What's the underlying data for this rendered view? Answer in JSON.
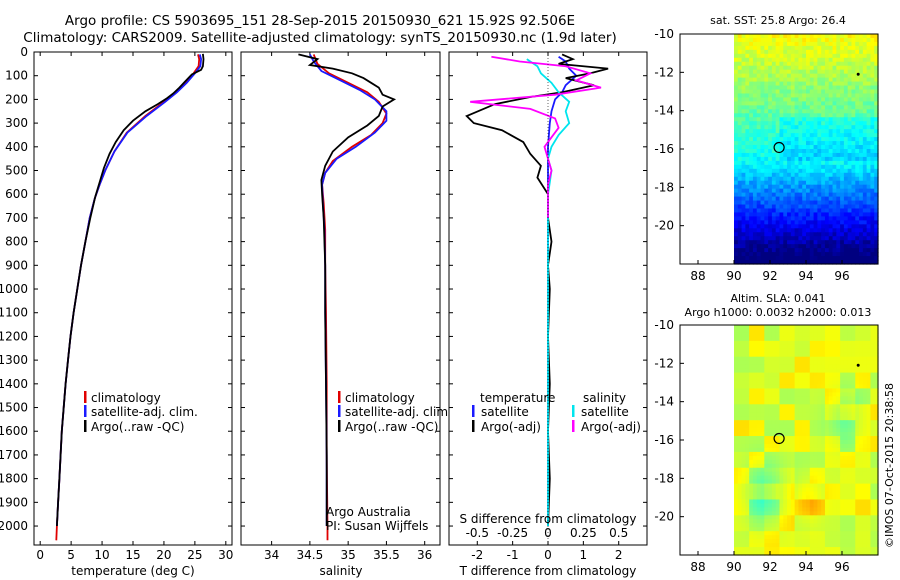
{
  "header": {
    "line1": "Argo profile: CS 5903695_151 28-Sep-2015 20150930_621 15.92S 92.506E",
    "line2": "Climatology: CARS2009. Satellite-adjusted climatology: synTS_20150930.nc (1.9d later)"
  },
  "legend": {
    "climatology": "climatology",
    "satellite_adj": "satellite-adj. clim.",
    "argo": "Argo(..raw -QC)",
    "temperature_hdr": "temperature",
    "salinity_hdr": "salinity",
    "satellite": "satellite",
    "argo_adj": "Argo(-adj)"
  },
  "annotations": {
    "agency": "Argo Australia",
    "pi": "PI: Susan Wijffels",
    "credit": "©IMOS 07-Oct-2015 20:38:58"
  },
  "colors": {
    "climatology": "#e00000",
    "satellite": "#1a1aff",
    "argo": "#000000",
    "sat_salinity": "#00e5ee",
    "argo_salinity": "#ff00ff"
  },
  "chart_data": [
    {
      "id": "temperature",
      "type": "line",
      "xlabel": "temperature (deg C)",
      "ylabel": "",
      "xlim": [
        -1,
        31
      ],
      "ylim": [
        2080,
        0
      ],
      "x_ticks": [
        0,
        5,
        10,
        15,
        20,
        25,
        30
      ],
      "y_ticks": [
        0,
        100,
        200,
        300,
        400,
        500,
        600,
        700,
        800,
        900,
        1000,
        1100,
        1200,
        1300,
        1400,
        1500,
        1600,
        1700,
        1800,
        1900,
        2000
      ],
      "series": [
        {
          "name": "climatology",
          "color": "#e00000",
          "points": [
            [
              25.5,
              10
            ],
            [
              25.7,
              30
            ],
            [
              25.6,
              60
            ],
            [
              24.8,
              90
            ],
            [
              23.5,
              130
            ],
            [
              22,
              170
            ],
            [
              20,
              210
            ],
            [
              17,
              270
            ],
            [
              14,
              340
            ],
            [
              12,
              420
            ],
            [
              10.5,
              500
            ],
            [
              9.6,
              560
            ],
            [
              8.8,
              620
            ],
            [
              8,
              700
            ],
            [
              7.3,
              800
            ],
            [
              6.6,
              900
            ],
            [
              6,
              1000
            ],
            [
              5.4,
              1100
            ],
            [
              4.9,
              1200
            ],
            [
              4.5,
              1300
            ],
            [
              4.1,
              1400
            ],
            [
              3.8,
              1500
            ],
            [
              3.5,
              1600
            ],
            [
              3.3,
              1700
            ],
            [
              3.1,
              1800
            ],
            [
              2.9,
              1900
            ],
            [
              2.7,
              2000
            ],
            [
              2.6,
              2060
            ]
          ]
        },
        {
          "name": "satellite-adj. clim.",
          "color": "#1a1aff",
          "points": [
            [
              25.8,
              10
            ],
            [
              26,
              30
            ],
            [
              25.9,
              60
            ],
            [
              25,
              90
            ],
            [
              23.7,
              130
            ],
            [
              22.1,
              170
            ],
            [
              20.2,
              210
            ],
            [
              17.2,
              270
            ],
            [
              14.1,
              340
            ],
            [
              12,
              420
            ],
            [
              10.5,
              500
            ],
            [
              9.6,
              560
            ],
            [
              8.8,
              620
            ],
            [
              8,
              700
            ],
            [
              7.3,
              800
            ],
            [
              6.6,
              900
            ],
            [
              6,
              1000
            ],
            [
              5.4,
              1100
            ],
            [
              4.9,
              1200
            ],
            [
              4.5,
              1300
            ],
            [
              4.1,
              1400
            ],
            [
              3.8,
              1500
            ],
            [
              3.5,
              1600
            ],
            [
              3.3,
              1700
            ],
            [
              3.1,
              1800
            ],
            [
              2.9,
              1900
            ],
            [
              2.7,
              2000
            ]
          ]
        },
        {
          "name": "Argo(..raw -QC)",
          "color": "#000000",
          "points": [
            [
              26.3,
              8
            ],
            [
              26.4,
              30
            ],
            [
              26.3,
              60
            ],
            [
              26,
              75
            ],
            [
              24.5,
              95
            ],
            [
              23.6,
              120
            ],
            [
              22.5,
              150
            ],
            [
              21.5,
              175
            ],
            [
              20.5,
              195
            ],
            [
              19,
              220
            ],
            [
              17,
              250
            ],
            [
              15,
              290
            ],
            [
              13.5,
              330
            ],
            [
              12.2,
              380
            ],
            [
              11.2,
              430
            ],
            [
              10.3,
              490
            ],
            [
              9.6,
              550
            ],
            [
              8.9,
              610
            ],
            [
              8.1,
              700
            ],
            [
              7.3,
              800
            ],
            [
              6.6,
              900
            ],
            [
              6,
              1000
            ],
            [
              5.4,
              1100
            ],
            [
              4.9,
              1200
            ],
            [
              4.5,
              1300
            ],
            [
              4.1,
              1400
            ],
            [
              3.8,
              1500
            ],
            [
              3.5,
              1600
            ],
            [
              3.3,
              1700
            ],
            [
              3.1,
              1800
            ],
            [
              2.9,
              1900
            ],
            [
              2.7,
              2000
            ]
          ]
        }
      ]
    },
    {
      "id": "salinity",
      "type": "line",
      "xlabel": "salinity",
      "ylabel": "",
      "xlim": [
        33.6,
        36.2
      ],
      "ylim": [
        2080,
        0
      ],
      "x_ticks": [
        34,
        34.5,
        35,
        35.5,
        36
      ],
      "series": [
        {
          "name": "climatology",
          "color": "#e00000",
          "points": [
            [
              34.55,
              10
            ],
            [
              34.6,
              50
            ],
            [
              34.75,
              90
            ],
            [
              35,
              130
            ],
            [
              35.25,
              170
            ],
            [
              35.4,
              210
            ],
            [
              35.5,
              260
            ],
            [
              35.45,
              300
            ],
            [
              35.3,
              350
            ],
            [
              35.05,
              400
            ],
            [
              34.8,
              460
            ],
            [
              34.7,
              510
            ],
            [
              34.66,
              560
            ],
            [
              34.68,
              640
            ],
            [
              34.7,
              750
            ],
            [
              34.7,
              900
            ],
            [
              34.71,
              1100
            ],
            [
              34.72,
              1400
            ],
            [
              34.72,
              1700
            ],
            [
              34.73,
              2000
            ],
            [
              34.73,
              2060
            ]
          ]
        },
        {
          "name": "satellite-adj. clim.",
          "color": "#1a1aff",
          "points": [
            [
              34.5,
              10
            ],
            [
              34.55,
              40
            ],
            [
              34.65,
              80
            ],
            [
              34.9,
              120
            ],
            [
              35.15,
              160
            ],
            [
              35.35,
              200
            ],
            [
              35.5,
              250
            ],
            [
              35.5,
              290
            ],
            [
              35.35,
              340
            ],
            [
              35.1,
              400
            ],
            [
              34.85,
              450
            ],
            [
              34.7,
              510
            ],
            [
              34.66,
              560
            ],
            [
              34.67,
              640
            ],
            [
              34.69,
              750
            ],
            [
              34.7,
              900
            ],
            [
              34.7,
              1100
            ],
            [
              34.71,
              1400
            ],
            [
              34.72,
              1700
            ],
            [
              34.72,
              2000
            ]
          ]
        },
        {
          "name": "Argo(..raw -QC)",
          "color": "#000000",
          "points": [
            [
              34.35,
              10
            ],
            [
              34.6,
              30
            ],
            [
              34.5,
              55
            ],
            [
              34.8,
              70
            ],
            [
              35.05,
              90
            ],
            [
              35.2,
              110
            ],
            [
              35.3,
              130
            ],
            [
              35.4,
              150
            ],
            [
              35.45,
              180
            ],
            [
              35.6,
              200
            ],
            [
              35.45,
              230
            ],
            [
              35.4,
              270
            ],
            [
              35.25,
              310
            ],
            [
              35,
              360
            ],
            [
              34.8,
              420
            ],
            [
              34.7,
              480
            ],
            [
              34.65,
              540
            ],
            [
              34.66,
              600
            ],
            [
              34.68,
              700
            ],
            [
              34.7,
              900
            ],
            [
              34.7,
              1100
            ],
            [
              34.71,
              1400
            ],
            [
              34.72,
              1700
            ],
            [
              34.72,
              2000
            ]
          ]
        }
      ]
    },
    {
      "id": "difference",
      "type": "line",
      "xlabel": "T difference from climatology",
      "xlabel_top": "S difference from climatology",
      "xlim": [
        -2.8,
        2.8
      ],
      "ylim": [
        2080,
        0
      ],
      "x_ticks": [
        -2,
        -1,
        0,
        1,
        2
      ],
      "s_ticks": [
        "-0.5",
        "-0.25",
        "0",
        "0.25",
        "0.5"
      ],
      "series": [
        {
          "name": "temperature satellite",
          "color": "#1a1aff",
          "points": [
            [
              0.3,
              20
            ],
            [
              0.5,
              40
            ],
            [
              0.6,
              70
            ],
            [
              0.8,
              100
            ],
            [
              0.5,
              140
            ],
            [
              0.4,
              170
            ],
            [
              0.2,
              200
            ],
            [
              0.1,
              250
            ],
            [
              0.05,
              300
            ],
            [
              0,
              400
            ],
            [
              0,
              600
            ],
            [
              0,
              900
            ],
            [
              0,
              1200
            ],
            [
              0,
              1500
            ],
            [
              0,
              1800
            ],
            [
              0,
              2000
            ]
          ]
        },
        {
          "name": "temperature Argo(-adj)",
          "color": "#000000",
          "points": [
            [
              0.4,
              10
            ],
            [
              0.7,
              30
            ],
            [
              0.3,
              50
            ],
            [
              1.7,
              70
            ],
            [
              1.2,
              90
            ],
            [
              0.5,
              110
            ],
            [
              1.3,
              140
            ],
            [
              0.4,
              170
            ],
            [
              -0.5,
              190
            ],
            [
              -1.5,
              220
            ],
            [
              -2.3,
              270
            ],
            [
              -2.1,
              300
            ],
            [
              -1.3,
              330
            ],
            [
              -0.7,
              380
            ],
            [
              -0.5,
              430
            ],
            [
              -0.2,
              480
            ],
            [
              -0.3,
              530
            ],
            [
              0,
              600
            ],
            [
              0,
              700
            ],
            [
              0.1,
              800
            ],
            [
              0,
              900
            ],
            [
              0.05,
              1000
            ],
            [
              0,
              1200
            ],
            [
              0.05,
              1400
            ],
            [
              0,
              1600
            ],
            [
              0.05,
              1800
            ],
            [
              0,
              2000
            ]
          ]
        },
        {
          "name": "salinity satellite",
          "color": "#00e5ee",
          "points": [
            [
              -0.6,
              30
            ],
            [
              -0.3,
              60
            ],
            [
              -0.2,
              90
            ],
            [
              0.1,
              130
            ],
            [
              0.3,
              170
            ],
            [
              0.6,
              210
            ],
            [
              0.5,
              250
            ],
            [
              0.6,
              300
            ],
            [
              0.3,
              350
            ],
            [
              0.1,
              400
            ],
            [
              0,
              450
            ],
            [
              0.1,
              500
            ],
            [
              0.05,
              550
            ],
            [
              0,
              600
            ],
            [
              0,
              1000
            ],
            [
              0,
              1500
            ],
            [
              0,
              2000
            ]
          ]
        },
        {
          "name": "salinity Argo(-adj)",
          "color": "#ff00ff",
          "points": [
            [
              -1.6,
              20
            ],
            [
              -0.8,
              40
            ],
            [
              0.5,
              60
            ],
            [
              1.2,
              90
            ],
            [
              0.8,
              120
            ],
            [
              1.5,
              150
            ],
            [
              0.2,
              180
            ],
            [
              -2.2,
              210
            ],
            [
              -0.5,
              240
            ],
            [
              0.2,
              280
            ],
            [
              0.3,
              320
            ],
            [
              0.1,
              360
            ],
            [
              -0.1,
              400
            ],
            [
              0,
              450
            ],
            [
              0.1,
              500
            ],
            [
              0,
              560
            ],
            [
              0,
              700
            ]
          ]
        }
      ]
    },
    {
      "id": "sst_map",
      "type": "heatmap",
      "title": "sat. SST: 25.8 Argo: 26.4",
      "xlim": [
        87,
        98
      ],
      "ylim": [
        -22,
        -10
      ],
      "x_ticks": [
        88,
        90,
        92,
        94,
        96
      ],
      "y_ticks": [
        -10,
        -12,
        -14,
        -16,
        -18,
        -20
      ],
      "data_lon_start": 90,
      "argo_position": [
        92.506,
        -15.92
      ],
      "colormap": "jet"
    },
    {
      "id": "sla_map",
      "type": "heatmap",
      "title_line1": "Altim. SLA: 0.041",
      "title_line2": "Argo h1000: 0.0032 h2000: 0.013",
      "xlim": [
        87,
        98
      ],
      "ylim": [
        -22,
        -10
      ],
      "x_ticks": [
        88,
        90,
        92,
        94,
        96
      ],
      "y_ticks": [
        -10,
        -12,
        -14,
        -16,
        -18,
        -20
      ],
      "data_lon_start": 90,
      "argo_position": [
        92.506,
        -15.92
      ],
      "colormap": "jet"
    }
  ]
}
